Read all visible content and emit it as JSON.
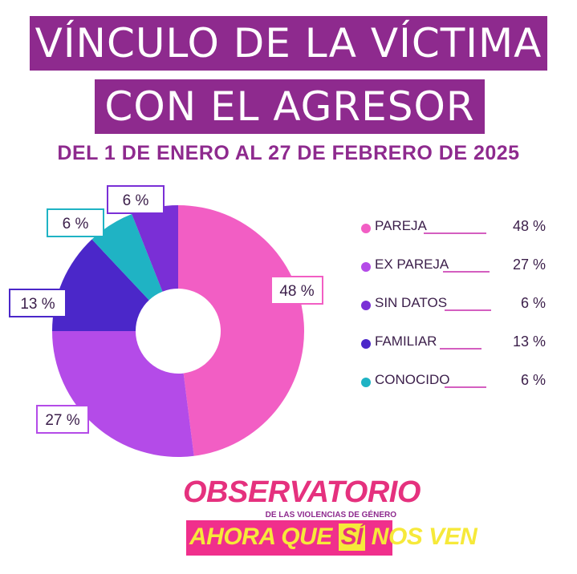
{
  "title_line1": "VÍNCULO DE LA VÍCTIMA",
  "title_line2": "CON EL AGRESOR",
  "subtitle": "DEL 1 DE ENERO AL 27 DE FEBRERO DE 2025",
  "chart_data": {
    "type": "pie",
    "variant": "donut",
    "title": "VÍNCULO DE LA VÍCTIMA CON EL AGRESOR",
    "subtitle": "DEL 1 DE ENERO AL 27 DE FEBRERO DE 2025",
    "categories": [
      "PAREJA",
      "EX PAREJA",
      "SIN DATOS",
      "FAMILIAR",
      "CONOCIDO"
    ],
    "values": [
      48,
      27,
      6,
      13,
      6
    ],
    "value_labels": [
      "48 %",
      "27 %",
      "6 %",
      "13 %",
      "6 %"
    ],
    "colors": [
      "#f25ec4",
      "#b44be8",
      "#7a2fd6",
      "#4b27c9",
      "#1fb3c4"
    ],
    "slice_order": [
      "PAREJA",
      "EX PAREJA",
      "FAMILIAR",
      "CONOCIDO",
      "SIN DATOS"
    ],
    "legend_position": "right"
  },
  "logo": {
    "top": "OBSERVATORIO",
    "sub": "DE LAS VIOLENCIAS DE GÉNERO",
    "bottom_a": "AHORA QUE",
    "bottom_b": "SÍ",
    "bottom_c": "NOS VEN"
  }
}
